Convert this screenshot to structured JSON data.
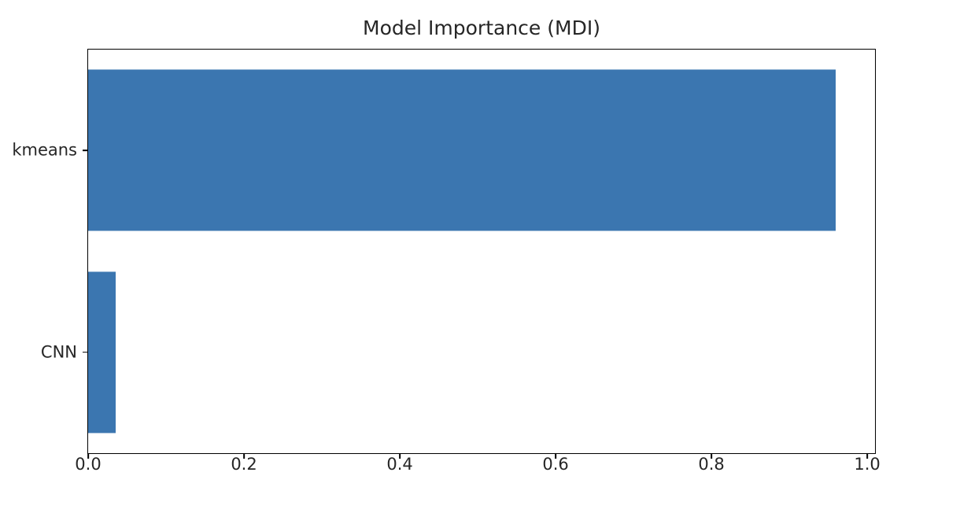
{
  "chart_data": {
    "type": "bar",
    "orientation": "horizontal",
    "title": "Model Importance (MDI)",
    "categories": [
      "kmeans",
      "CNN"
    ],
    "values": [
      0.96,
      0.035
    ],
    "xlabel": "",
    "ylabel": "",
    "xlim": [
      0,
      1.01
    ],
    "xticks": [
      0,
      0.2,
      0.4,
      0.6,
      0.8,
      1.0
    ],
    "xtick_labels": [
      "0.0",
      "0.2",
      "0.4",
      "0.6",
      "0.8",
      "1.0"
    ],
    "bar_height_frac": 0.8,
    "grid": false,
    "legend_position": "none",
    "colors": {
      "bar": "#3b76b0",
      "background": "#ffffff",
      "spine": "#000000",
      "text": "#262626"
    }
  }
}
